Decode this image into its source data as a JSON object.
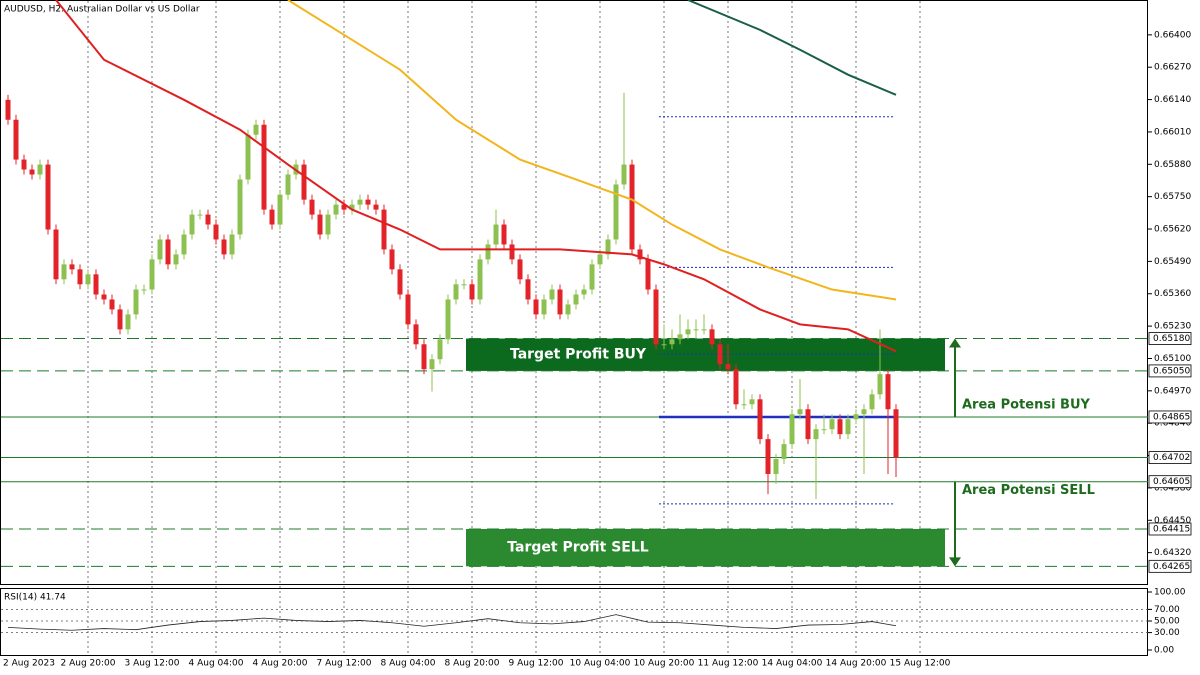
{
  "chart_data": {
    "type": "candlestick",
    "title": "AUDUSD, H2:  Australian Dollar vs US Dollar",
    "up_color": "#8cc152",
    "down_color": "#e3232a",
    "ylim": [
      0.6419,
      0.6654
    ],
    "yticks": [
      {
        "value": 0.664,
        "label": "0.66400"
      },
      {
        "value": 0.6627,
        "label": "0.66270"
      },
      {
        "value": 0.6614,
        "label": "0.66140"
      },
      {
        "value": 0.6601,
        "label": "0.66010"
      },
      {
        "value": 0.6588,
        "label": "0.65880"
      },
      {
        "value": 0.6575,
        "label": "0.65750"
      },
      {
        "value": 0.6562,
        "label": "0.65620"
      },
      {
        "value": 0.6549,
        "label": "0.65490"
      },
      {
        "value": 0.6536,
        "label": "0.65360"
      },
      {
        "value": 0.6523,
        "label": "0.65230"
      },
      {
        "value": 0.651,
        "label": "0.65100"
      },
      {
        "value": 0.6497,
        "label": "0.64970"
      },
      {
        "value": 0.6484,
        "label": "0.64840"
      },
      {
        "value": 0.6471,
        "label": "0.64710"
      },
      {
        "value": 0.6458,
        "label": "0.64580"
      },
      {
        "value": 0.6445,
        "label": "0.64450"
      },
      {
        "value": 0.6432,
        "label": "0.64320"
      }
    ],
    "xticks": [
      {
        "value": 0,
        "label": "2 Aug 2023"
      },
      {
        "value": 10,
        "label": "2 Aug 20:00"
      },
      {
        "value": 18,
        "label": "3 Aug 12:00"
      },
      {
        "value": 26,
        "label": "4 Aug 04:00"
      },
      {
        "value": 34,
        "label": "4 Aug 20:00"
      },
      {
        "value": 42,
        "label": "7 Aug 12:00"
      },
      {
        "value": 50,
        "label": "8 Aug 04:00"
      },
      {
        "value": 58,
        "label": "8 Aug 20:00"
      },
      {
        "value": 66,
        "label": "9 Aug 12:00"
      },
      {
        "value": 74,
        "label": "10 Aug 04:00"
      },
      {
        "value": 82,
        "label": "10 Aug 20:00"
      },
      {
        "value": 90,
        "label": "11 Aug 12:00"
      },
      {
        "value": 98,
        "label": "14 Aug 04:00"
      },
      {
        "value": 106,
        "label": "14 Aug 20:00"
      },
      {
        "value": 114,
        "label": "15 Aug 12:00"
      }
    ],
    "ohlc": [
      [
        0.66139,
        0.66159,
        0.66039,
        0.66059
      ],
      [
        0.66059,
        0.66079,
        0.65879,
        0.65899
      ],
      [
        0.65899,
        0.65919,
        0.65839,
        0.65859
      ],
      [
        0.65859,
        0.65879,
        0.65819,
        0.65839
      ],
      [
        0.65839,
        0.65899,
        0.65819,
        0.65879
      ],
      [
        0.65879,
        0.65899,
        0.65598,
        0.65618
      ],
      [
        0.65618,
        0.65638,
        0.65398,
        0.65418
      ],
      [
        0.65418,
        0.65498,
        0.65398,
        0.65478
      ],
      [
        0.65478,
        0.65498,
        0.65438,
        0.65458
      ],
      [
        0.65458,
        0.65478,
        0.65378,
        0.65398
      ],
      [
        0.65398,
        0.65458,
        0.65378,
        0.65438
      ],
      [
        0.65438,
        0.65458,
        0.65337,
        0.65357
      ],
      [
        0.65357,
        0.65377,
        0.65317,
        0.65337
      ],
      [
        0.65337,
        0.65357,
        0.65277,
        0.65297
      ],
      [
        0.65297,
        0.65317,
        0.65197,
        0.65217
      ],
      [
        0.65217,
        0.65297,
        0.65197,
        0.65277
      ],
      [
        0.65277,
        0.65397,
        0.65257,
        0.65377
      ],
      [
        0.65377,
        0.65397,
        0.65357,
        0.65377
      ],
      [
        0.65377,
        0.65518,
        0.65357,
        0.65498
      ],
      [
        0.65498,
        0.65598,
        0.65478,
        0.65578
      ],
      [
        0.65578,
        0.65598,
        0.65458,
        0.65478
      ],
      [
        0.65478,
        0.65538,
        0.65458,
        0.65518
      ],
      [
        0.65518,
        0.65618,
        0.65498,
        0.65598
      ],
      [
        0.65598,
        0.65698,
        0.65578,
        0.65678
      ],
      [
        0.65678,
        0.65698,
        0.65658,
        0.65678
      ],
      [
        0.65678,
        0.65698,
        0.65618,
        0.65638
      ],
      [
        0.65638,
        0.65658,
        0.65558,
        0.65578
      ],
      [
        0.65578,
        0.65598,
        0.65498,
        0.65518
      ],
      [
        0.65518,
        0.65618,
        0.65498,
        0.65598
      ],
      [
        0.65598,
        0.65839,
        0.65578,
        0.65819
      ],
      [
        0.65819,
        0.66019,
        0.65799,
        0.65999
      ],
      [
        0.65999,
        0.66059,
        0.65979,
        0.66039
      ],
      [
        0.66039,
        0.66059,
        0.65678,
        0.65698
      ],
      [
        0.65698,
        0.65718,
        0.65618,
        0.65638
      ],
      [
        0.65638,
        0.65778,
        0.65618,
        0.65758
      ],
      [
        0.65758,
        0.65859,
        0.65738,
        0.65839
      ],
      [
        0.65839,
        0.65899,
        0.65819,
        0.65879
      ],
      [
        0.65879,
        0.65899,
        0.65718,
        0.65738
      ],
      [
        0.65738,
        0.65758,
        0.65658,
        0.65678
      ],
      [
        0.65678,
        0.65698,
        0.65578,
        0.65598
      ],
      [
        0.65598,
        0.65698,
        0.65578,
        0.65678
      ],
      [
        0.65678,
        0.65738,
        0.65658,
        0.65718
      ],
      [
        0.65718,
        0.65738,
        0.65678,
        0.65698
      ],
      [
        0.65698,
        0.65738,
        0.65678,
        0.65718
      ],
      [
        0.65718,
        0.65758,
        0.65698,
        0.65738
      ],
      [
        0.65738,
        0.65758,
        0.65698,
        0.65718
      ],
      [
        0.65718,
        0.65738,
        0.65678,
        0.65698
      ],
      [
        0.65698,
        0.65718,
        0.65518,
        0.65538
      ],
      [
        0.65538,
        0.65558,
        0.65438,
        0.65458
      ],
      [
        0.65458,
        0.65478,
        0.65337,
        0.65357
      ],
      [
        0.65357,
        0.65377,
        0.65217,
        0.65237
      ],
      [
        0.65237,
        0.65257,
        0.65137,
        0.65157
      ],
      [
        0.65157,
        0.65177,
        0.65037,
        0.65057
      ],
      [
        0.65057,
        0.65117,
        0.64967,
        0.65097
      ],
      [
        0.65097,
        0.65197,
        0.65077,
        0.65177
      ],
      [
        0.65177,
        0.65357,
        0.65157,
        0.65337
      ],
      [
        0.65337,
        0.65418,
        0.65317,
        0.65398
      ],
      [
        0.65398,
        0.65418,
        0.65378,
        0.65398
      ],
      [
        0.65398,
        0.65418,
        0.65317,
        0.65337
      ],
      [
        0.65337,
        0.65518,
        0.65317,
        0.65498
      ],
      [
        0.65498,
        0.65578,
        0.65478,
        0.65558
      ],
      [
        0.65558,
        0.65698,
        0.65538,
        0.65638
      ],
      [
        0.65638,
        0.65658,
        0.65538,
        0.65558
      ],
      [
        0.65558,
        0.65578,
        0.65478,
        0.65498
      ],
      [
        0.65498,
        0.65518,
        0.65398,
        0.65418
      ],
      [
        0.65418,
        0.65438,
        0.65317,
        0.65337
      ],
      [
        0.65337,
        0.65357,
        0.65257,
        0.65277
      ],
      [
        0.65277,
        0.65357,
        0.65257,
        0.65337
      ],
      [
        0.65337,
        0.65397,
        0.65317,
        0.65377
      ],
      [
        0.65377,
        0.65397,
        0.65257,
        0.65277
      ],
      [
        0.65277,
        0.65337,
        0.65257,
        0.65317
      ],
      [
        0.65317,
        0.65377,
        0.65297,
        0.65357
      ],
      [
        0.65357,
        0.65397,
        0.65337,
        0.65377
      ],
      [
        0.65377,
        0.65498,
        0.65357,
        0.65478
      ],
      [
        0.65478,
        0.65538,
        0.65458,
        0.65518
      ],
      [
        0.65518,
        0.65598,
        0.65498,
        0.65578
      ],
      [
        0.65578,
        0.65819,
        0.65558,
        0.65799
      ],
      [
        0.65799,
        0.66167,
        0.65779,
        0.65879
      ],
      [
        0.65879,
        0.65899,
        0.65518,
        0.65538
      ],
      [
        0.65538,
        0.65558,
        0.65478,
        0.65498
      ],
      [
        0.65498,
        0.65518,
        0.65357,
        0.65377
      ],
      [
        0.65377,
        0.65397,
        0.65137,
        0.65157
      ],
      [
        0.65157,
        0.65237,
        0.65137,
        0.65157
      ],
      [
        0.65157,
        0.65217,
        0.65137,
        0.65177
      ],
      [
        0.65177,
        0.65277,
        0.65157,
        0.65197
      ],
      [
        0.65197,
        0.65257,
        0.65177,
        0.65217
      ],
      [
        0.65217,
        0.65257,
        0.65177,
        0.65217
      ],
      [
        0.65217,
        0.65277,
        0.65197,
        0.65217
      ],
      [
        0.65217,
        0.65237,
        0.65137,
        0.65157
      ],
      [
        0.65157,
        0.65177,
        0.65057,
        0.65077
      ],
      [
        0.65077,
        0.65157,
        0.65037,
        0.65057
      ],
      [
        0.65057,
        0.65077,
        0.64896,
        0.64916
      ],
      [
        0.64916,
        0.64976,
        0.64896,
        0.64916
      ],
      [
        0.64916,
        0.64956,
        0.64896,
        0.64936
      ],
      [
        0.64936,
        0.64956,
        0.64756,
        0.64776
      ],
      [
        0.64776,
        0.64796,
        0.64555,
        0.64636
      ],
      [
        0.64636,
        0.64716,
        0.64596,
        0.64696
      ],
      [
        0.64696,
        0.64776,
        0.64676,
        0.64756
      ],
      [
        0.64756,
        0.64896,
        0.64736,
        0.64876
      ],
      [
        0.64876,
        0.65017,
        0.64856,
        0.64896
      ],
      [
        0.64896,
        0.64916,
        0.64756,
        0.64776
      ],
      [
        0.64776,
        0.64836,
        0.64535,
        0.64816
      ],
      [
        0.64816,
        0.64876,
        0.64796,
        0.64816
      ],
      [
        0.64816,
        0.64876,
        0.64796,
        0.64856
      ],
      [
        0.64856,
        0.64876,
        0.64776,
        0.64796
      ],
      [
        0.64796,
        0.64876,
        0.64776,
        0.64856
      ],
      [
        0.64856,
        0.64896,
        0.64836,
        0.64876
      ],
      [
        0.64876,
        0.64916,
        0.64636,
        0.64896
      ],
      [
        0.64896,
        0.64976,
        0.64876,
        0.64956
      ],
      [
        0.64956,
        0.65217,
        0.64936,
        0.65037
      ],
      [
        0.65037,
        0.65057,
        0.64636,
        0.64896
      ],
      [
        0.64896,
        0.64916,
        0.64624,
        0.64702
      ]
    ],
    "moving_averages": [
      {
        "color": "#e02020",
        "x": [
          6,
          12,
          22,
          29,
          35,
          43,
          49,
          54,
          62,
          69,
          78,
          82,
          87,
          94,
          99,
          105,
          111
        ],
        "values": [
          0.6654,
          0.663,
          0.66139,
          0.66019,
          0.65879,
          0.65698,
          0.65618,
          0.65538,
          0.65538,
          0.65538,
          0.65518,
          0.65478,
          0.65418,
          0.65297,
          0.65237,
          0.65217,
          0.65129
        ]
      },
      {
        "color": "#f2b51c",
        "x": [
          35,
          43,
          49,
          56,
          64,
          71,
          78,
          83,
          89,
          95,
          103,
          111
        ],
        "values": [
          0.6654,
          0.6638,
          0.6626,
          0.66059,
          0.65899,
          0.65819,
          0.65738,
          0.65638,
          0.65538,
          0.65466,
          0.65377,
          0.65337
        ]
      },
      {
        "color": "#1a5e4a",
        "x": [
          85,
          94,
          99,
          105,
          111
        ],
        "values": [
          0.6654,
          0.6642,
          0.6634,
          0.6624,
          0.66159
        ]
      }
    ],
    "levels": [
      {
        "value": 0.6518,
        "label": "0.65180",
        "style": "dashed"
      },
      {
        "value": 0.6505,
        "label": "0.65050",
        "style": "dashed"
      },
      {
        "value": 0.64865,
        "label": "0.64865",
        "style": "solid"
      },
      {
        "value": 0.64702,
        "label": "0.64702",
        "style": "solid"
      },
      {
        "value": 0.64605,
        "label": "0.64605",
        "style": "solid"
      },
      {
        "value": 0.64415,
        "label": "0.64415",
        "style": "dashed"
      },
      {
        "value": 0.64265,
        "label": "0.64265",
        "style": "dashed"
      }
    ],
    "level_color": "#1e7a2a",
    "pivots": {
      "color": "#1f2fbf",
      "main": 0.64865,
      "dotted": [
        0.66071,
        0.65466,
        0.65117,
        0.64516
      ]
    },
    "zones": [
      {
        "label": "Target Profit BUY",
        "from": 0.6505,
        "to": 0.6518,
        "color": "#0b6a1d"
      },
      {
        "label": "Target Profit SELL",
        "from": 0.64265,
        "to": 0.64415,
        "color": "#2b8a2f"
      }
    ],
    "annotations": [
      {
        "text": "Area Potensi BUY",
        "from": 0.64865,
        "to": 0.6518
      },
      {
        "text": "Area Potensi SELL",
        "from": 0.64605,
        "to": 0.64265
      }
    ],
    "rsi": {
      "label": "RSI(14) 41.74",
      "ylim": [
        0,
        100
      ],
      "yticks": [
        {
          "value": 100,
          "label": "100.00"
        },
        {
          "value": 70,
          "label": "70.00"
        },
        {
          "value": 50,
          "label": "50.00"
        },
        {
          "value": 30,
          "label": "30.00"
        },
        {
          "value": 0,
          "label": "0.00"
        }
      ],
      "x": [
        0,
        4,
        8,
        12,
        16,
        20,
        24,
        28,
        32,
        36,
        40,
        44,
        48,
        52,
        56,
        60,
        64,
        68,
        72,
        76,
        80,
        84,
        88,
        92,
        96,
        100,
        104,
        108,
        111
      ],
      "values": [
        39,
        36,
        34,
        37,
        35,
        43,
        49,
        51,
        55,
        51,
        49,
        51,
        47,
        41,
        47,
        54,
        47,
        45,
        49,
        61,
        48,
        47,
        43,
        39,
        37,
        43,
        44,
        49,
        41.74
      ]
    }
  }
}
